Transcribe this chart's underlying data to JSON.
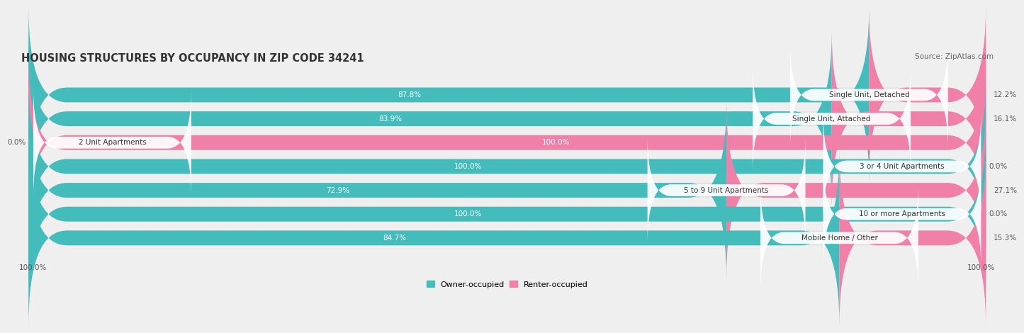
{
  "title": "HOUSING STRUCTURES BY OCCUPANCY IN ZIP CODE 34241",
  "source": "Source: ZipAtlas.com",
  "categories": [
    "Single Unit, Detached",
    "Single Unit, Attached",
    "2 Unit Apartments",
    "3 or 4 Unit Apartments",
    "5 to 9 Unit Apartments",
    "10 or more Apartments",
    "Mobile Home / Other"
  ],
  "owner_pct": [
    87.8,
    83.9,
    0.0,
    100.0,
    72.9,
    100.0,
    84.7
  ],
  "renter_pct": [
    12.2,
    16.1,
    100.0,
    0.0,
    27.1,
    0.0,
    15.3
  ],
  "owner_color": "#45BCBC",
  "renter_color": "#F080A8",
  "renter_color_light": "#F5B8CC",
  "owner_color_light": "#A0D8D8",
  "bg_color": "#EFEFEF",
  "bar_bg_color": "#E2E2E2",
  "title_fontsize": 10.5,
  "source_fontsize": 7.5,
  "label_fontsize": 7.5,
  "bar_height": 0.62,
  "xlim": [
    0,
    100
  ]
}
